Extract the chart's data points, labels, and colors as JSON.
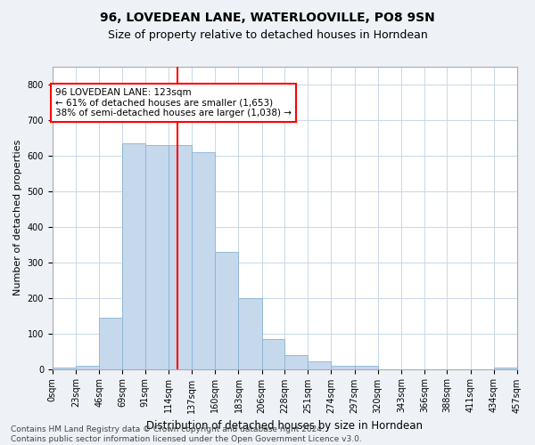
{
  "title": "96, LOVEDEAN LANE, WATERLOOVILLE, PO8 9SN",
  "subtitle": "Size of property relative to detached houses in Horndean",
  "xlabel": "Distribution of detached houses by size in Horndean",
  "ylabel": "Number of detached properties",
  "bar_heights": [
    5,
    10,
    145,
    635,
    630,
    630,
    610,
    330,
    200,
    85,
    40,
    22,
    10,
    10,
    0,
    0,
    0,
    0,
    0,
    5
  ],
  "bin_edges": [
    0,
    23,
    46,
    69,
    91,
    114,
    137,
    160,
    183,
    206,
    228,
    251,
    274,
    297,
    320,
    343,
    366,
    388,
    411,
    434,
    457
  ],
  "bar_color": "#c5d8ec",
  "bar_edge_color": "#8ab4d4",
  "vline_x": 123,
  "vline_color": "red",
  "annotation_text": "96 LOVEDEAN LANE: 123sqm\n← 61% of detached houses are smaller (1,653)\n38% of semi-detached houses are larger (1,038) →",
  "annotation_box_color": "white",
  "annotation_box_edge": "red",
  "ylim": [
    0,
    850
  ],
  "yticks": [
    0,
    100,
    200,
    300,
    400,
    500,
    600,
    700,
    800
  ],
  "tick_labels": [
    "0sqm",
    "23sqm",
    "46sqm",
    "69sqm",
    "91sqm",
    "114sqm",
    "137sqm",
    "160sqm",
    "183sqm",
    "206sqm",
    "228sqm",
    "251sqm",
    "274sqm",
    "297sqm",
    "320sqm",
    "343sqm",
    "366sqm",
    "388sqm",
    "411sqm",
    "434sqm",
    "457sqm"
  ],
  "footer": "Contains HM Land Registry data © Crown copyright and database right 2024.\nContains public sector information licensed under the Open Government Licence v3.0.",
  "bg_color": "#eef2f7",
  "plot_bg_color": "white",
  "grid_color": "#c8d8e8",
  "title_fontsize": 10,
  "subtitle_fontsize": 9,
  "ylabel_fontsize": 8,
  "xlabel_fontsize": 8.5,
  "tick_fontsize": 7,
  "footer_fontsize": 6.5
}
